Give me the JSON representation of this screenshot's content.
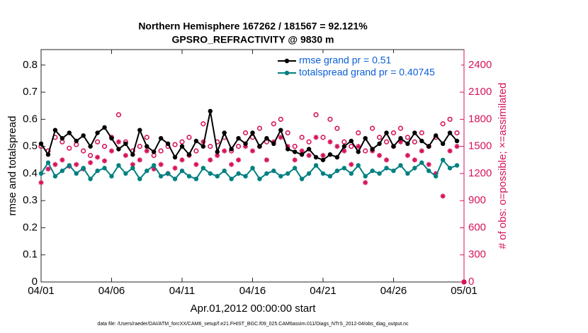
{
  "chart_data": {
    "type": "line",
    "title": "Northern Hemisphere 167262 / 181567 = 92.121%",
    "subtitle": "GPSRO_REFRACTIVITY @ 9830 m",
    "xlabel": "Apr.01,2012 00:00:00 start",
    "ylabel": "rmse and totalspread",
    "y2label": "# of obs: o=possible; ×=assimilated",
    "footnote": "data file: /Users/raeder/DAI/ATM_forcXX/CAM6_setup/f.e21.FHIST_BGC.f09_025.CAM6assim.011/Diags_NTrS_2012-04/obs_diag_output.nc",
    "x": [
      0,
      0.5,
      1,
      1.5,
      2,
      2.5,
      3,
      3.5,
      4,
      4.5,
      5,
      5.5,
      6,
      6.5,
      7,
      7.5,
      8,
      8.5,
      9,
      9.5,
      10,
      10.5,
      11,
      11.5,
      12,
      12.5,
      13,
      13.5,
      14,
      14.5,
      15,
      15.5,
      16,
      16.5,
      17,
      17.5,
      18,
      18.5,
      19,
      19.5,
      20,
      20.5,
      21,
      21.5,
      22,
      22.5,
      23,
      23.5,
      24,
      24.5,
      25,
      25.5,
      26,
      26.5,
      27,
      27.5,
      28,
      28.5,
      29,
      29.5,
      30
    ],
    "xlim": [
      0,
      30
    ],
    "xticks": [
      {
        "value": 0,
        "label": "04/01"
      },
      {
        "value": 5,
        "label": "04/06"
      },
      {
        "value": 10,
        "label": "04/11"
      },
      {
        "value": 15,
        "label": "04/16"
      },
      {
        "value": 20,
        "label": "04/21"
      },
      {
        "value": 25,
        "label": "04/26"
      },
      {
        "value": 30,
        "label": "05/01"
      }
    ],
    "ylim": [
      0,
      0.857
    ],
    "yticks": [
      0,
      0.1,
      0.2,
      0.3,
      0.4,
      0.5,
      0.6,
      0.7,
      0.8
    ],
    "y2lim": [
      0,
      2571
    ],
    "y2ticks": [
      0,
      300,
      600,
      900,
      1200,
      1500,
      1800,
      2100,
      2400
    ],
    "y2color": "#d6135c",
    "series": [
      {
        "name": "rmse grand pr = 0.51",
        "color": "#000000",
        "marker": "dot",
        "line": true,
        "values": [
          0.51,
          0.47,
          0.56,
          0.53,
          0.55,
          0.52,
          0.54,
          0.5,
          0.55,
          0.57,
          0.53,
          0.49,
          0.51,
          0.47,
          0.56,
          0.5,
          0.48,
          0.53,
          0.51,
          0.46,
          0.5,
          0.47,
          0.52,
          0.5,
          0.63,
          0.48,
          0.55,
          0.49,
          0.53,
          0.51,
          0.55,
          0.5,
          0.53,
          0.51,
          0.56,
          0.49,
          0.48,
          0.47,
          0.49,
          0.46,
          0.45,
          0.47,
          0.46,
          0.5,
          0.52,
          0.48,
          0.53,
          0.49,
          0.51,
          0.55,
          0.5,
          0.53,
          0.51,
          0.55,
          0.52,
          0.5,
          0.54,
          0.51,
          0.55,
          0.52,
          null
        ]
      },
      {
        "name": "totalspread grand pr = 0.40745",
        "color": "#008080",
        "marker": "dot",
        "line": true,
        "values": [
          0.4,
          0.44,
          0.39,
          0.41,
          0.43,
          0.4,
          0.42,
          0.38,
          0.41,
          0.42,
          0.39,
          0.43,
          0.4,
          0.42,
          0.38,
          0.41,
          0.43,
          0.39,
          0.4,
          0.38,
          0.41,
          0.39,
          0.38,
          0.42,
          0.4,
          0.39,
          0.41,
          0.38,
          0.4,
          0.39,
          0.42,
          0.38,
          0.4,
          0.41,
          0.39,
          0.4,
          0.42,
          0.38,
          0.4,
          0.43,
          0.4,
          0.39,
          0.41,
          0.42,
          0.4,
          0.43,
          0.39,
          0.41,
          0.4,
          0.42,
          0.41,
          0.43,
          0.4,
          0.42,
          0.44,
          0.41,
          0.39,
          0.45,
          0.42,
          0.43,
          null
        ]
      },
      {
        "color": "#d6135c",
        "marker": "circle",
        "line": false,
        "axis": "y2",
        "values": [
          1500,
          1450,
          1600,
          1550,
          1480,
          1520,
          1450,
          1400,
          1550,
          1500,
          1600,
          1850,
          1550,
          1450,
          1500,
          1600,
          1400,
          1450,
          1500,
          1520,
          1550,
          1600,
          1450,
          1750,
          1500,
          1550,
          1600,
          1450,
          1500,
          1650,
          1600,
          1700,
          1550,
          1750,
          1800,
          1650,
          1500,
          1600,
          1550,
          1850,
          1600,
          1800,
          1700,
          1550,
          1500,
          1650,
          1450,
          1700,
          1600,
          1550,
          1650,
          1700,
          1600,
          1550,
          1650,
          1500,
          1600,
          1750,
          1800,
          1650,
          0
        ]
      },
      {
        "color": "#d6135c",
        "marker": "asterisk",
        "line": false,
        "axis": "y2",
        "values": [
          1100,
          1250,
          1300,
          1350,
          1280,
          1300,
          1250,
          1320,
          1380,
          1340,
          1450,
          1550,
          1400,
          1300,
          1350,
          1450,
          1250,
          1300,
          1200,
          1260,
          1350,
          1400,
          1300,
          1550,
          1350,
          1400,
          1450,
          1300,
          1350,
          1500,
          1450,
          1500,
          1350,
          1550,
          1600,
          1500,
          1350,
          1450,
          1400,
          1600,
          1400,
          1550,
          1500,
          1450,
          1300,
          1500,
          1100,
          1450,
          1400,
          1350,
          1500,
          1550,
          1400,
          1350,
          1450,
          1300,
          1200,
          950,
          1450,
          1500,
          0
        ]
      }
    ],
    "legend_text_color": "#0b5fd6"
  }
}
